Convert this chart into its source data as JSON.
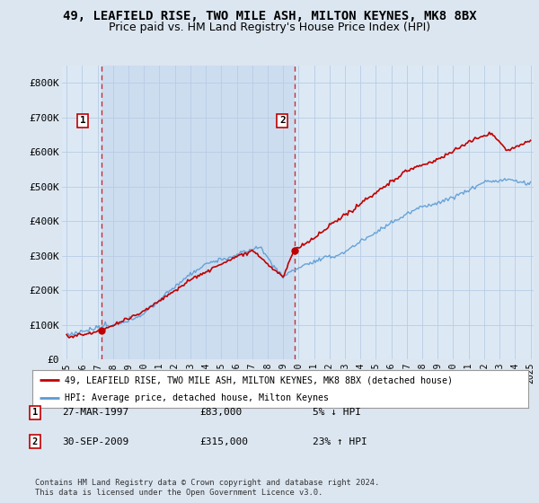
{
  "title": "49, LEAFIELD RISE, TWO MILE ASH, MILTON KEYNES, MK8 8BX",
  "subtitle": "Price paid vs. HM Land Registry's House Price Index (HPI)",
  "ylim": [
    0,
    850000
  ],
  "yticks": [
    0,
    100000,
    200000,
    300000,
    400000,
    500000,
    600000,
    700000,
    800000
  ],
  "ytick_labels": [
    "£0",
    "£100K",
    "£200K",
    "£300K",
    "£400K",
    "£500K",
    "£600K",
    "£700K",
    "£800K"
  ],
  "background_color": "#dce6f0",
  "plot_bg_color": "#dce6f0",
  "grid_color": "#b8cce4",
  "shade_color": "#c8daea",
  "hpi_color": "#5b9bd5",
  "price_color": "#c00000",
  "annotation_box_color": "#c00000",
  "legend_label_price": "49, LEAFIELD RISE, TWO MILE ASH, MILTON KEYNES, MK8 8BX (detached house)",
  "legend_label_hpi": "HPI: Average price, detached house, Milton Keynes",
  "sale1_label": "1",
  "sale1_date": "27-MAR-1997",
  "sale1_price": "£83,000",
  "sale1_hpi": "5% ↓ HPI",
  "sale1_year": 1997.23,
  "sale1_value": 83000,
  "sale2_label": "2",
  "sale2_date": "30-SEP-2009",
  "sale2_price": "£315,000",
  "sale2_hpi": "23% ↑ HPI",
  "sale2_year": 2009.75,
  "sale2_value": 315000,
  "footer": "Contains HM Land Registry data © Crown copyright and database right 2024.\nThis data is licensed under the Open Government Licence v3.0.",
  "title_fontsize": 10,
  "subtitle_fontsize": 9,
  "xstart": 1995,
  "xend": 2025
}
